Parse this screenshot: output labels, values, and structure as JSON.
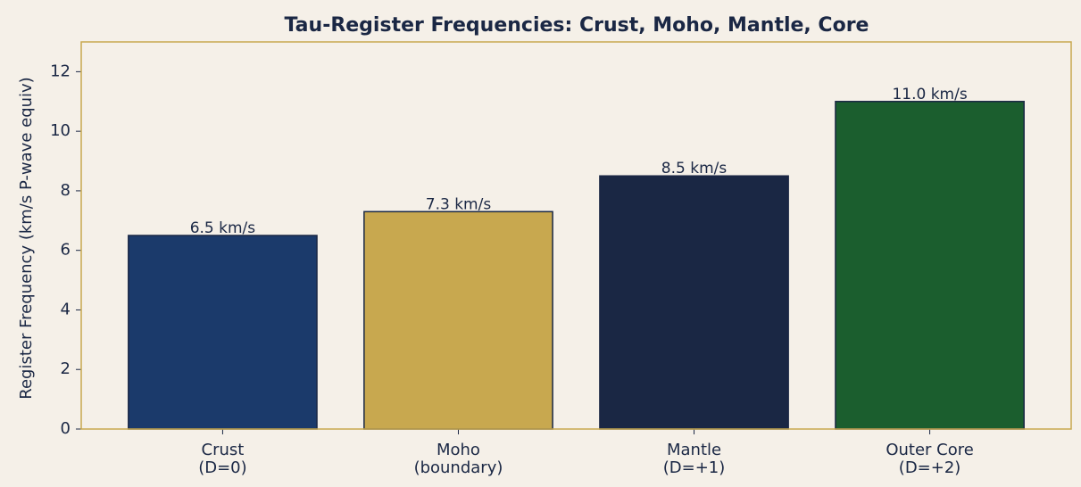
{
  "chart_data": {
    "type": "bar",
    "title": "Tau-Register Frequencies: Crust, Moho, Mantle, Core",
    "ylabel": "Register Frequency (km/s P-wave equiv)",
    "categories": [
      "Crust\n(D=0)",
      "Moho\n(boundary)",
      "Mantle\n(D=+1)",
      "Outer Core\n(D=+2)"
    ],
    "values": [
      6.5,
      7.3,
      8.5,
      11.0
    ],
    "value_labels": [
      "6.5 km/s",
      "7.3 km/s",
      "8.5 km/s",
      "11.0 km/s"
    ],
    "colors": [
      "#1b3a6b",
      "#c8a84f",
      "#1a2744",
      "#1b5e2e"
    ],
    "ylim": [
      0,
      13
    ],
    "yticks": [
      0,
      2,
      4,
      6,
      8,
      10,
      12
    ],
    "grid": false
  }
}
